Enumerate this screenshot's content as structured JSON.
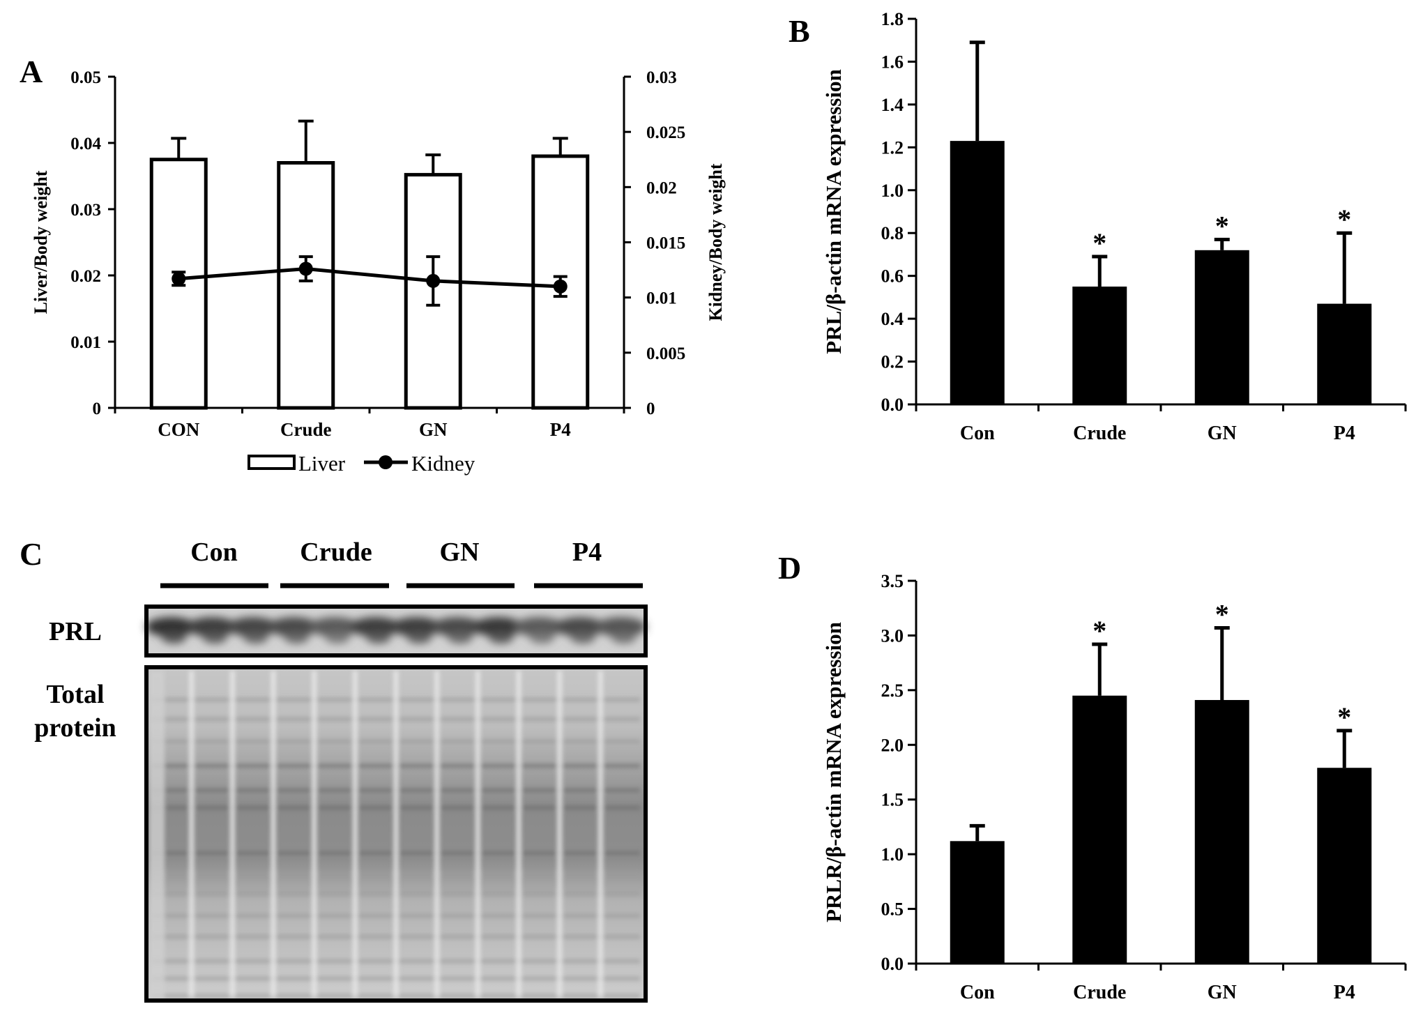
{
  "chart_data": [
    {
      "panel_label": "A",
      "type": "bar",
      "categories": [
        "CON",
        "Crude",
        "GN",
        "P4"
      ],
      "ylabel": "Liver/Body weight",
      "ylabel_right": "Kidney/Body weight",
      "ylim": [
        0,
        0.05
      ],
      "ylim_right": [
        0,
        0.03
      ],
      "yticks": [
        "0",
        "0.01",
        "0.02",
        "0.03",
        "0.04",
        "0.05"
      ],
      "yticks_right": [
        "0",
        "0.005",
        "0.01",
        "0.015",
        "0.02",
        "0.025",
        "0.03"
      ],
      "series": [
        {
          "name": "Liver",
          "kind": "bar",
          "axis": "left",
          "values": [
            0.0375,
            0.037,
            0.0352,
            0.038
          ],
          "errors": [
            0.0032,
            0.0063,
            0.003,
            0.0027
          ]
        },
        {
          "name": "Kidney",
          "kind": "line",
          "axis": "right",
          "values": [
            0.0117,
            0.0126,
            0.0115,
            0.011
          ],
          "errors": [
            0.0006,
            0.0011,
            0.0022,
            0.0009
          ]
        }
      ],
      "legend_position": "bottom"
    },
    {
      "panel_label": "B",
      "type": "bar",
      "categories": [
        "Con",
        "Crude",
        "GN",
        "P4"
      ],
      "ylabel": "PRL/β-actin mRNA expression",
      "ylim": [
        0,
        1.8
      ],
      "yticks": [
        "0.0",
        "0.2",
        "0.4",
        "0.6",
        "0.8",
        "1.0",
        "1.2",
        "1.4",
        "1.6",
        "1.8"
      ],
      "series": [
        {
          "values": [
            1.23,
            0.55,
            0.72,
            0.47
          ],
          "errors": [
            0.46,
            0.14,
            0.05,
            0.33
          ]
        }
      ],
      "significance": [
        "",
        "*",
        "*",
        "*"
      ]
    },
    {
      "panel_label": "D",
      "type": "bar",
      "categories": [
        "Con",
        "Crude",
        "GN",
        "P4"
      ],
      "ylabel": "PRLR/β-actin mRNA expression",
      "ylim": [
        0,
        3.5
      ],
      "yticks": [
        "0.0",
        "0.5",
        "1.0",
        "1.5",
        "2.0",
        "2.5",
        "3.0",
        "3.5"
      ],
      "series": [
        {
          "values": [
            1.12,
            2.45,
            2.41,
            1.79
          ],
          "errors": [
            0.14,
            0.47,
            0.66,
            0.34
          ]
        }
      ],
      "significance": [
        "",
        "*",
        "*",
        "*"
      ]
    }
  ],
  "panel_c": {
    "panel_label": "C",
    "groups": [
      "Con",
      "Crude",
      "GN",
      "P4"
    ],
    "row_labels": {
      "prl": "PRL",
      "total_line1": "Total",
      "total_line2": "protein"
    }
  }
}
